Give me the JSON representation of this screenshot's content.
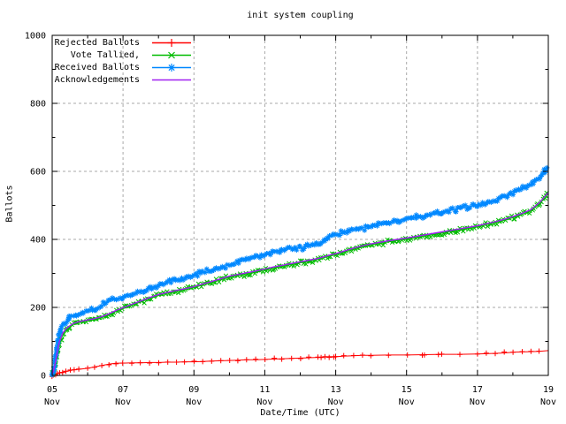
{
  "window": {
    "background": "#ffffff",
    "text_color": "#000000",
    "grid_color": "#a8a8a8"
  },
  "chart_data": {
    "type": "line",
    "title": "init system coupling",
    "xlabel": "Date/Time (UTC)",
    "ylabel": "Ballots",
    "ylim": [
      0,
      1000
    ],
    "x_range_days": [
      5,
      19
    ],
    "grid": true,
    "legend_position": "top-left",
    "x_axis": {
      "label": "Date/Time (UTC)",
      "major_ticks": [
        {
          "day": 5,
          "line1": "05",
          "line2": "Nov"
        },
        {
          "day": 7,
          "line1": "07",
          "line2": "Nov"
        },
        {
          "day": 9,
          "line1": "09",
          "line2": "Nov"
        },
        {
          "day": 11,
          "line1": "11",
          "line2": "Nov"
        },
        {
          "day": 13,
          "line1": "13",
          "line2": "Nov"
        },
        {
          "day": 15,
          "line1": "15",
          "line2": "Nov"
        },
        {
          "day": 17,
          "line1": "17",
          "line2": "Nov"
        },
        {
          "day": 19,
          "line1": "19",
          "line2": "Nov"
        }
      ],
      "minor_tick_days": [
        6,
        8,
        10,
        12,
        14,
        16,
        18
      ]
    },
    "y_axis": {
      "label": "Ballots",
      "major_ticks": [
        0,
        200,
        400,
        600,
        800,
        1000
      ],
      "minor_ticks": [
        100,
        300,
        500,
        700,
        900
      ]
    },
    "x": [
      5,
      5.05,
      5.1,
      5.15,
      5.2,
      5.3,
      5.4,
      5.5,
      5.6,
      5.75,
      6,
      6.2,
      6.4,
      6.6,
      6.8,
      7,
      7.25,
      7.5,
      7.75,
      8,
      8.25,
      8.5,
      8.75,
      9,
      9.25,
      9.5,
      9.75,
      10,
      10.25,
      10.5,
      10.75,
      11,
      11.25,
      11.5,
      11.75,
      12,
      12.25,
      12.5,
      12.6,
      12.7,
      12.8,
      13,
      13.25,
      13.5,
      13.75,
      14,
      14.5,
      15,
      15.5,
      16,
      16.5,
      17,
      17.25,
      17.5,
      17.75,
      18,
      18.25,
      18.5,
      18.75,
      19
    ],
    "series": [
      {
        "name": "Rejected Ballots",
        "color": "#ff0000",
        "marker": "plus",
        "values": [
          0,
          2,
          4,
          6,
          8,
          10,
          12,
          14,
          16,
          18,
          21,
          25,
          29,
          33,
          36,
          36,
          37,
          37,
          38,
          38,
          39,
          39,
          40,
          40,
          41,
          42,
          43,
          44,
          45,
          46,
          46,
          47,
          48,
          49,
          50,
          51,
          52,
          53,
          54,
          54,
          55,
          55,
          57,
          58,
          59,
          59,
          60,
          60,
          61,
          62,
          62,
          63,
          64,
          65,
          66,
          68,
          69,
          70,
          71,
          73
        ]
      },
      {
        "name": "Vote Tallied,",
        "color": "#00bb00",
        "marker": "cross",
        "values": [
          1,
          15,
          40,
          70,
          95,
          122,
          135,
          143,
          150,
          155,
          160,
          164,
          170,
          178,
          188,
          196,
          206,
          216,
          226,
          235,
          241,
          247,
          252,
          258,
          266,
          273,
          281,
          289,
          294,
          299,
          304,
          310,
          316,
          321,
          326,
          331,
          336,
          341,
          344,
          347,
          350,
          355,
          363,
          371,
          378,
          384,
          393,
          401,
          410,
          419,
          428,
          437,
          443,
          449,
          456,
          464,
          473,
          484,
          505,
          535
        ]
      },
      {
        "name": "Received Ballots",
        "color": "#0088ff",
        "marker": "asterisk",
        "values": [
          2,
          25,
          60,
          95,
          120,
          148,
          160,
          170,
          177,
          184,
          191,
          196,
          205,
          218,
          226,
          229,
          237,
          247,
          256,
          264,
          272,
          280,
          287,
          294,
          303,
          311,
          318,
          326,
          334,
          341,
          349,
          356,
          363,
          369,
          372,
          375,
          380,
          386,
          392,
          400,
          406,
          412,
          421,
          428,
          434,
          440,
          451,
          461,
          471,
          481,
          490,
          500,
          506,
          514,
          524,
          535,
          548,
          562,
          582,
          615
        ]
      },
      {
        "name": "Acknowledgements",
        "color": "#a020f0",
        "marker": "none",
        "values": [
          4,
          18,
          43,
          73,
          98,
          125,
          138,
          146,
          153,
          158,
          163,
          167,
          173,
          181,
          191,
          199,
          209,
          219,
          229,
          238,
          244,
          250,
          255,
          261,
          269,
          276,
          284,
          292,
          297,
          302,
          307,
          313,
          319,
          324,
          329,
          334,
          339,
          344,
          347,
          350,
          353,
          358,
          366,
          374,
          381,
          387,
          396,
          404,
          413,
          422,
          431,
          440,
          446,
          452,
          459,
          467,
          476,
          487,
          508,
          538
        ]
      }
    ]
  }
}
